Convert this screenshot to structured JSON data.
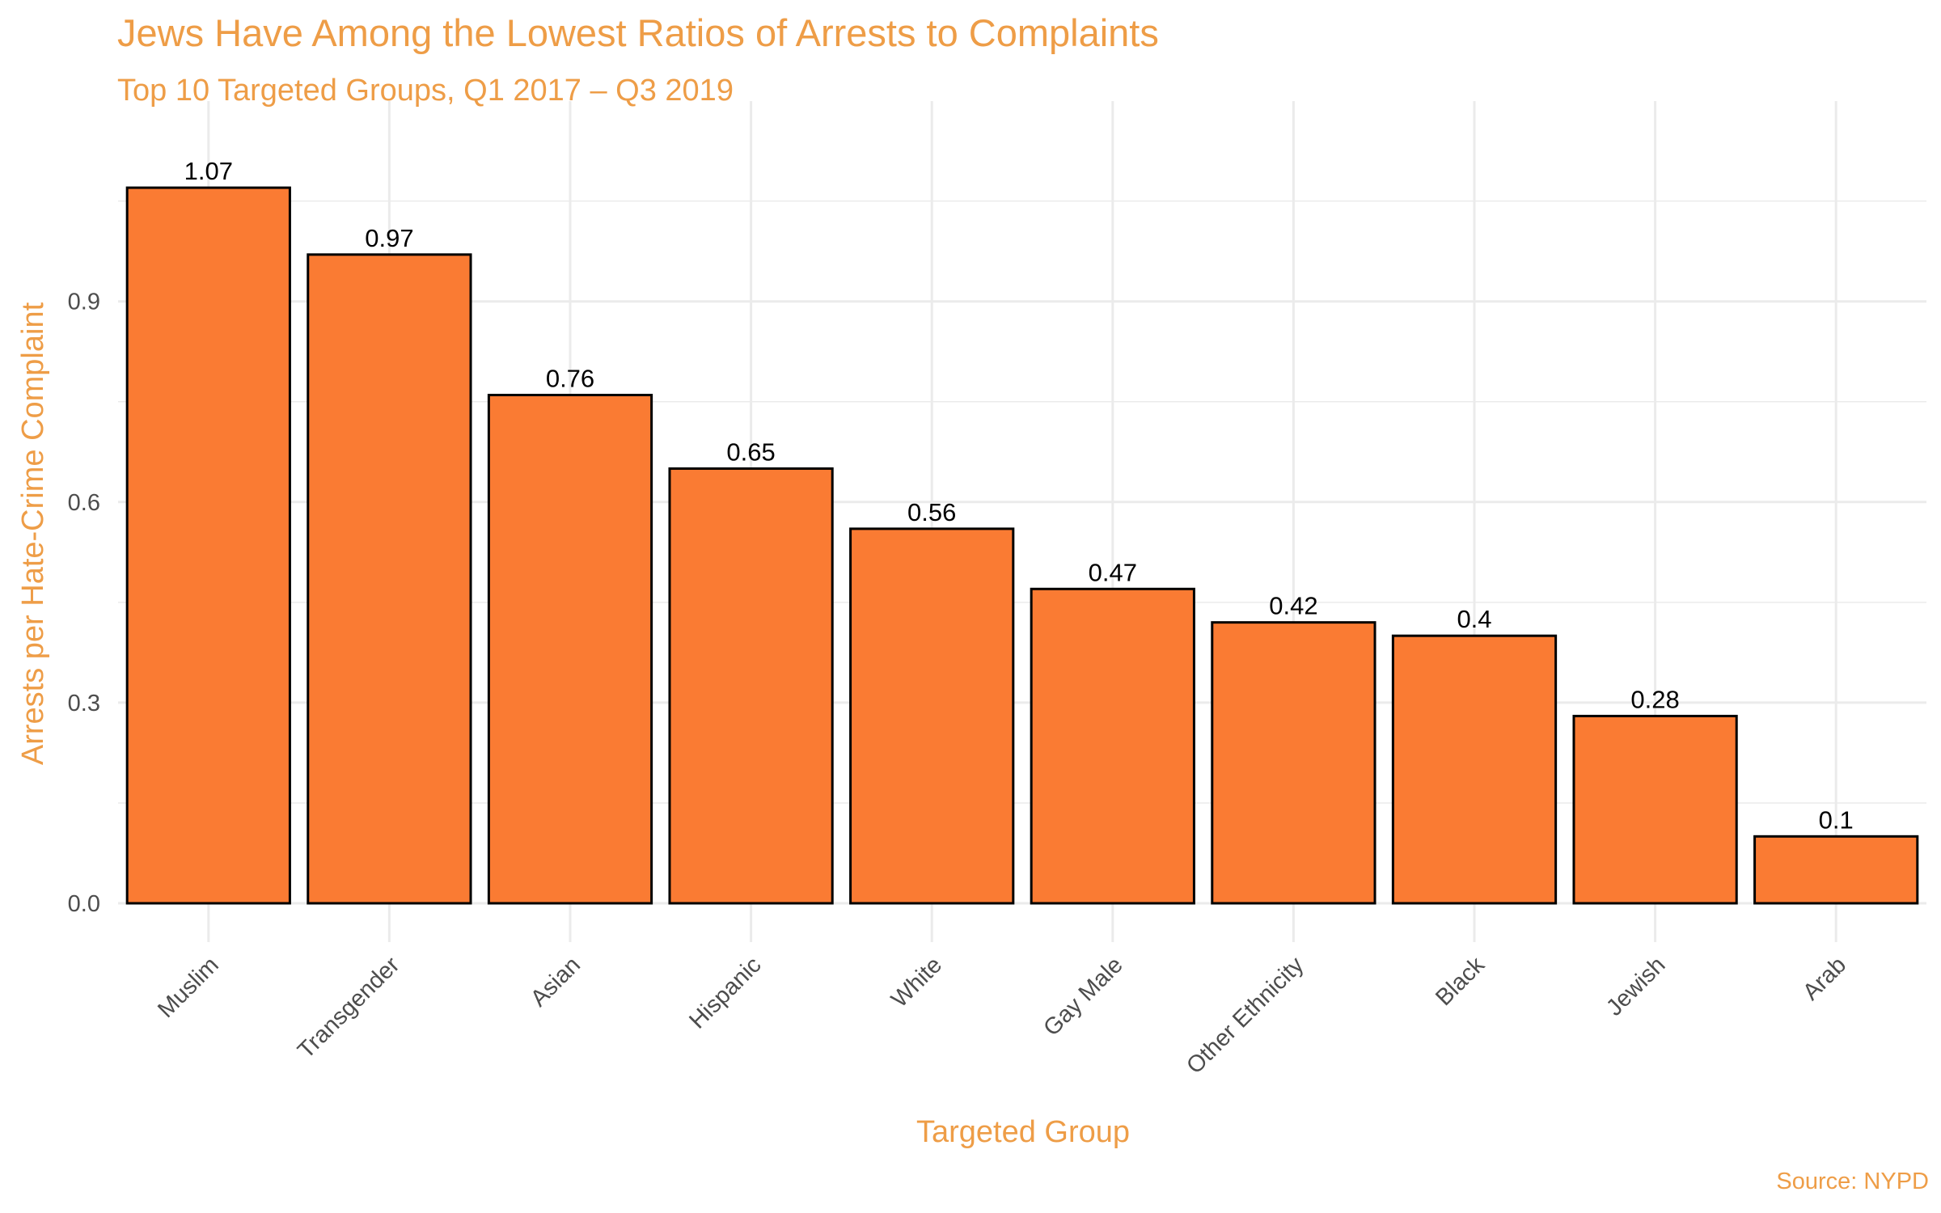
{
  "chart_data": {
    "type": "bar",
    "title": "Jews Have Among the Lowest Ratios of Arrests to Complaints",
    "subtitle": "Top 10 Targeted Groups, Q1 2017 – Q3 2019",
    "xlabel": "Targeted Group",
    "ylabel": "Arrests per Hate-Crime Complaint",
    "caption": "Source: NYPD",
    "categories": [
      "Muslim",
      "Transgender",
      "Asian",
      "Hispanic",
      "White",
      "Gay Male",
      "Other Ethnicity",
      "Black",
      "Jewish",
      "Arab"
    ],
    "values": [
      1.07,
      0.97,
      0.76,
      0.65,
      0.56,
      0.47,
      0.42,
      0.4,
      0.28,
      0.1
    ],
    "value_labels": [
      "1.07",
      "0.97",
      "0.76",
      "0.65",
      "0.56",
      "0.47",
      "0.42",
      "0.4",
      "0.28",
      "0.1"
    ],
    "yticks": [
      0.0,
      0.3,
      0.6,
      0.9
    ],
    "ytick_labels": [
      "0.0",
      "0.3",
      "0.6",
      "0.9"
    ],
    "ylim": [
      0,
      1.12
    ],
    "grid": true,
    "legend": "none",
    "colors": {
      "bar_fill": "#fa7b33",
      "bar_outline": "#000000",
      "title": "#ee9d47",
      "grid": "#ebebeb",
      "tick_text": "#4d4d4d"
    }
  }
}
